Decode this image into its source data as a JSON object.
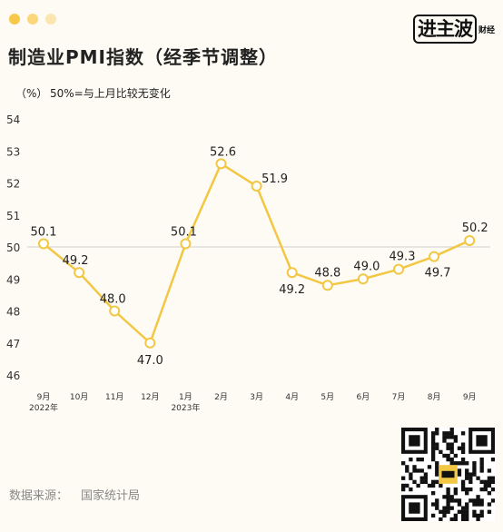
{
  "header": {
    "title": "制造业PMI指数（经季节调整）",
    "unit": "（%）",
    "note": "50%=与上月比较无变化",
    "logo_main": "进主波",
    "logo_sub": "财经"
  },
  "footer": {
    "source_label": "数据来源：",
    "source_value": "国家统计局"
  },
  "colors": {
    "accent": "#f2c744",
    "line": "#f2c744",
    "dot1": "#f7c948",
    "dot2": "#f9d77a",
    "dot3": "#fbe6b0"
  },
  "chart_data": {
    "type": "line",
    "title": "制造业PMI指数（经季节调整）",
    "ylabel": "（%）",
    "categories": [
      "9月",
      "10月",
      "11月",
      "12月",
      "1月",
      "2月",
      "3月",
      "4月",
      "5月",
      "6月",
      "7月",
      "8月",
      "9月"
    ],
    "year_labels": {
      "0": "2022年",
      "4": "2023年"
    },
    "values": [
      50.1,
      49.2,
      48.0,
      47.0,
      50.1,
      52.6,
      51.9,
      49.2,
      48.8,
      49.0,
      49.3,
      49.7,
      50.2
    ],
    "data_labels": [
      "50.1",
      "49.2",
      "48.0",
      "47.0",
      "50.1",
      "52.6",
      "51.9",
      "49.2",
      "48.8",
      "49.0",
      "49.3",
      "49.7",
      "50.2"
    ],
    "yticks": [
      46,
      47,
      48,
      49,
      50,
      51,
      52,
      53,
      54
    ],
    "ylim": [
      46,
      54
    ],
    "reference_line": 50,
    "grid": false
  }
}
